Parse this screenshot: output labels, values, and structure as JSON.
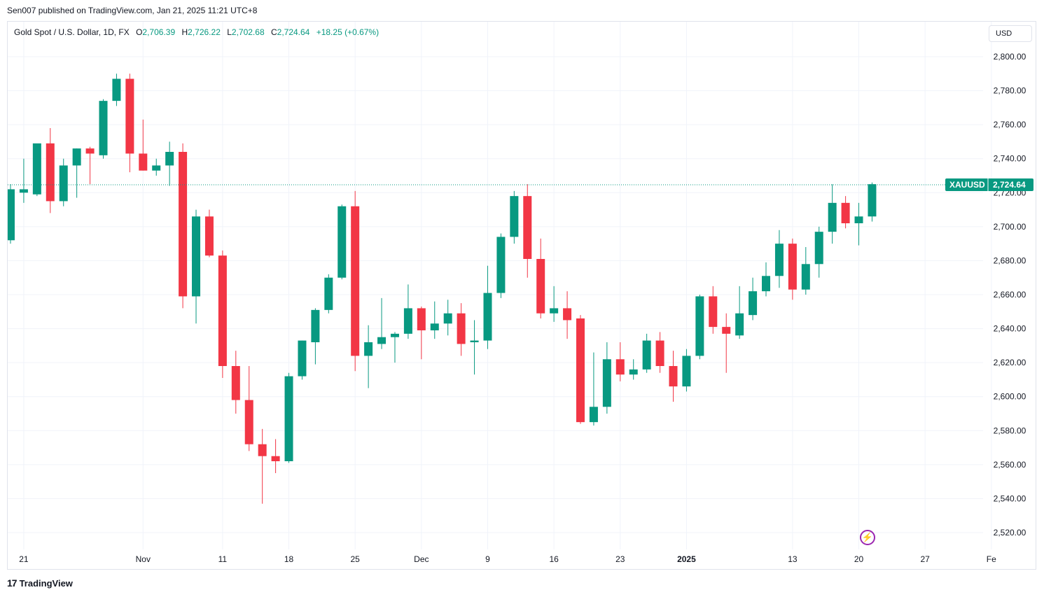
{
  "publisher_line": "Sen007 published on TradingView.com, Jan 21, 2025 11:21 UTC+8",
  "legend": {
    "symbol": "Gold Spot / U.S. Dollar, 1D, FX",
    "o_label": "O",
    "o": "2,706.39",
    "h_label": "H",
    "h": "2,726.22",
    "l_label": "L",
    "l": "2,702.68",
    "c_label": "C",
    "c": "2,724.64",
    "change": "+18.25 (+0.67%)"
  },
  "currency": "USD",
  "price_tag": {
    "symbol": "XAUUSD",
    "price": "2,724.64"
  },
  "footer_brand": "TradingView",
  "colors": {
    "up": "#089981",
    "down": "#f23645",
    "grid": "#f0f3fa",
    "text": "#131722",
    "alert": "#9c27b0"
  },
  "chart_data": {
    "type": "candlestick",
    "ylim": [
      2512,
      2812
    ],
    "y_ticks": [
      "2,800.00",
      "2,780.00",
      "2,760.00",
      "2,740.00",
      "2,720.00",
      "2,700.00",
      "2,680.00",
      "2,660.00",
      "2,640.00",
      "2,620.00",
      "2,600.00",
      "2,580.00",
      "2,560.00",
      "2,540.00",
      "2,520.00"
    ],
    "y_tick_values": [
      2800,
      2780,
      2760,
      2740,
      2720,
      2700,
      2680,
      2660,
      2640,
      2620,
      2600,
      2580,
      2560,
      2540,
      2520
    ],
    "x_ticks": [
      {
        "label": "21",
        "index": 1,
        "bold": false
      },
      {
        "label": "Nov",
        "index": 10,
        "bold": false
      },
      {
        "label": "11",
        "index": 16,
        "bold": false
      },
      {
        "label": "18",
        "index": 21,
        "bold": false
      },
      {
        "label": "25",
        "index": 26,
        "bold": false
      },
      {
        "label": "Dec",
        "index": 31,
        "bold": false
      },
      {
        "label": "9",
        "index": 36,
        "bold": false
      },
      {
        "label": "16",
        "index": 41,
        "bold": false
      },
      {
        "label": "23",
        "index": 46,
        "bold": false
      },
      {
        "label": "2025",
        "index": 51,
        "bold": true
      },
      {
        "label": "13",
        "index": 59,
        "bold": false
      },
      {
        "label": "20",
        "index": 64,
        "bold": false
      },
      {
        "label": "27",
        "index": 69,
        "bold": false
      },
      {
        "label": "Fe",
        "index": 74,
        "bold": false
      }
    ],
    "last_price": 2724.64,
    "candles": [
      {
        "o": 2692,
        "h": 2725,
        "l": 2690,
        "c": 2722
      },
      {
        "o": 2720,
        "h": 2740,
        "l": 2714,
        "c": 2722
      },
      {
        "o": 2719,
        "h": 2748,
        "l": 2718,
        "c": 2749
      },
      {
        "o": 2749,
        "h": 2758,
        "l": 2708,
        "c": 2715
      },
      {
        "o": 2715,
        "h": 2740,
        "l": 2712,
        "c": 2736
      },
      {
        "o": 2736,
        "h": 2746,
        "l": 2717,
        "c": 2746
      },
      {
        "o": 2746,
        "h": 2747,
        "l": 2725,
        "c": 2743
      },
      {
        "o": 2742,
        "h": 2775,
        "l": 2740,
        "c": 2774
      },
      {
        "o": 2774,
        "h": 2790,
        "l": 2771,
        "c": 2787
      },
      {
        "o": 2787,
        "h": 2790,
        "l": 2732,
        "c": 2743
      },
      {
        "o": 2743,
        "h": 2763,
        "l": 2733,
        "c": 2733
      },
      {
        "o": 2733,
        "h": 2740,
        "l": 2730,
        "c": 2736
      },
      {
        "o": 2736,
        "h": 2750,
        "l": 2724,
        "c": 2744
      },
      {
        "o": 2744,
        "h": 2749,
        "l": 2652,
        "c": 2659
      },
      {
        "o": 2659,
        "h": 2710,
        "l": 2643,
        "c": 2706
      },
      {
        "o": 2706,
        "h": 2710,
        "l": 2682,
        "c": 2683
      },
      {
        "o": 2683,
        "h": 2686,
        "l": 2611,
        "c": 2618
      },
      {
        "o": 2618,
        "h": 2627,
        "l": 2590,
        "c": 2598
      },
      {
        "o": 2598,
        "h": 2618,
        "l": 2568,
        "c": 2572
      },
      {
        "o": 2572,
        "h": 2581,
        "l": 2537,
        "c": 2565
      },
      {
        "o": 2565,
        "h": 2575,
        "l": 2555,
        "c": 2562
      },
      {
        "o": 2562,
        "h": 2614,
        "l": 2561,
        "c": 2612
      },
      {
        "o": 2612,
        "h": 2633,
        "l": 2610,
        "c": 2633
      },
      {
        "o": 2632,
        "h": 2652,
        "l": 2619,
        "c": 2651
      },
      {
        "o": 2651,
        "h": 2672,
        "l": 2649,
        "c": 2670
      },
      {
        "o": 2670,
        "h": 2713,
        "l": 2669,
        "c": 2712
      },
      {
        "o": 2712,
        "h": 2721,
        "l": 2615,
        "c": 2624
      },
      {
        "o": 2624,
        "h": 2642,
        "l": 2605,
        "c": 2632
      },
      {
        "o": 2631,
        "h": 2658,
        "l": 2628,
        "c": 2635
      },
      {
        "o": 2635,
        "h": 2638,
        "l": 2620,
        "c": 2637
      },
      {
        "o": 2637,
        "h": 2666,
        "l": 2634,
        "c": 2652
      },
      {
        "o": 2652,
        "h": 2653,
        "l": 2622,
        "c": 2639
      },
      {
        "o": 2639,
        "h": 2656,
        "l": 2634,
        "c": 2643
      },
      {
        "o": 2643,
        "h": 2657,
        "l": 2636,
        "c": 2649
      },
      {
        "o": 2649,
        "h": 2655,
        "l": 2624,
        "c": 2631
      },
      {
        "o": 2632,
        "h": 2645,
        "l": 2613,
        "c": 2633
      },
      {
        "o": 2633,
        "h": 2677,
        "l": 2628,
        "c": 2661
      },
      {
        "o": 2661,
        "h": 2696,
        "l": 2658,
        "c": 2694
      },
      {
        "o": 2694,
        "h": 2721,
        "l": 2690,
        "c": 2718
      },
      {
        "o": 2718,
        "h": 2725,
        "l": 2670,
        "c": 2681
      },
      {
        "o": 2681,
        "h": 2693,
        "l": 2646,
        "c": 2649
      },
      {
        "o": 2649,
        "h": 2665,
        "l": 2644,
        "c": 2652
      },
      {
        "o": 2652,
        "h": 2662,
        "l": 2634,
        "c": 2645
      },
      {
        "o": 2646,
        "h": 2648,
        "l": 2584,
        "c": 2585
      },
      {
        "o": 2585,
        "h": 2626,
        "l": 2583,
        "c": 2594
      },
      {
        "o": 2594,
        "h": 2632,
        "l": 2590,
        "c": 2622
      },
      {
        "o": 2622,
        "h": 2632,
        "l": 2609,
        "c": 2613
      },
      {
        "o": 2613,
        "h": 2622,
        "l": 2610,
        "c": 2616
      },
      {
        "o": 2616,
        "h": 2637,
        "l": 2614,
        "c": 2633
      },
      {
        "o": 2633,
        "h": 2638,
        "l": 2614,
        "c": 2618
      },
      {
        "o": 2618,
        "h": 2627,
        "l": 2597,
        "c": 2606
      },
      {
        "o": 2606,
        "h": 2628,
        "l": 2603,
        "c": 2624
      },
      {
        "o": 2624,
        "h": 2660,
        "l": 2622,
        "c": 2659
      },
      {
        "o": 2659,
        "h": 2665,
        "l": 2637,
        "c": 2641
      },
      {
        "o": 2641,
        "h": 2649,
        "l": 2614,
        "c": 2637
      },
      {
        "o": 2636,
        "h": 2665,
        "l": 2634,
        "c": 2649
      },
      {
        "o": 2648,
        "h": 2670,
        "l": 2645,
        "c": 2662
      },
      {
        "o": 2662,
        "h": 2679,
        "l": 2659,
        "c": 2671
      },
      {
        "o": 2671,
        "h": 2698,
        "l": 2664,
        "c": 2690
      },
      {
        "o": 2690,
        "h": 2693,
        "l": 2657,
        "c": 2663
      },
      {
        "o": 2663,
        "h": 2688,
        "l": 2660,
        "c": 2678
      },
      {
        "o": 2678,
        "h": 2700,
        "l": 2670,
        "c": 2697
      },
      {
        "o": 2697,
        "h": 2725,
        "l": 2690,
        "c": 2714
      },
      {
        "o": 2714,
        "h": 2718,
        "l": 2699,
        "c": 2702
      },
      {
        "o": 2702,
        "h": 2714,
        "l": 2689,
        "c": 2706
      },
      {
        "o": 2706,
        "h": 2726,
        "l": 2703,
        "c": 2725
      }
    ]
  }
}
